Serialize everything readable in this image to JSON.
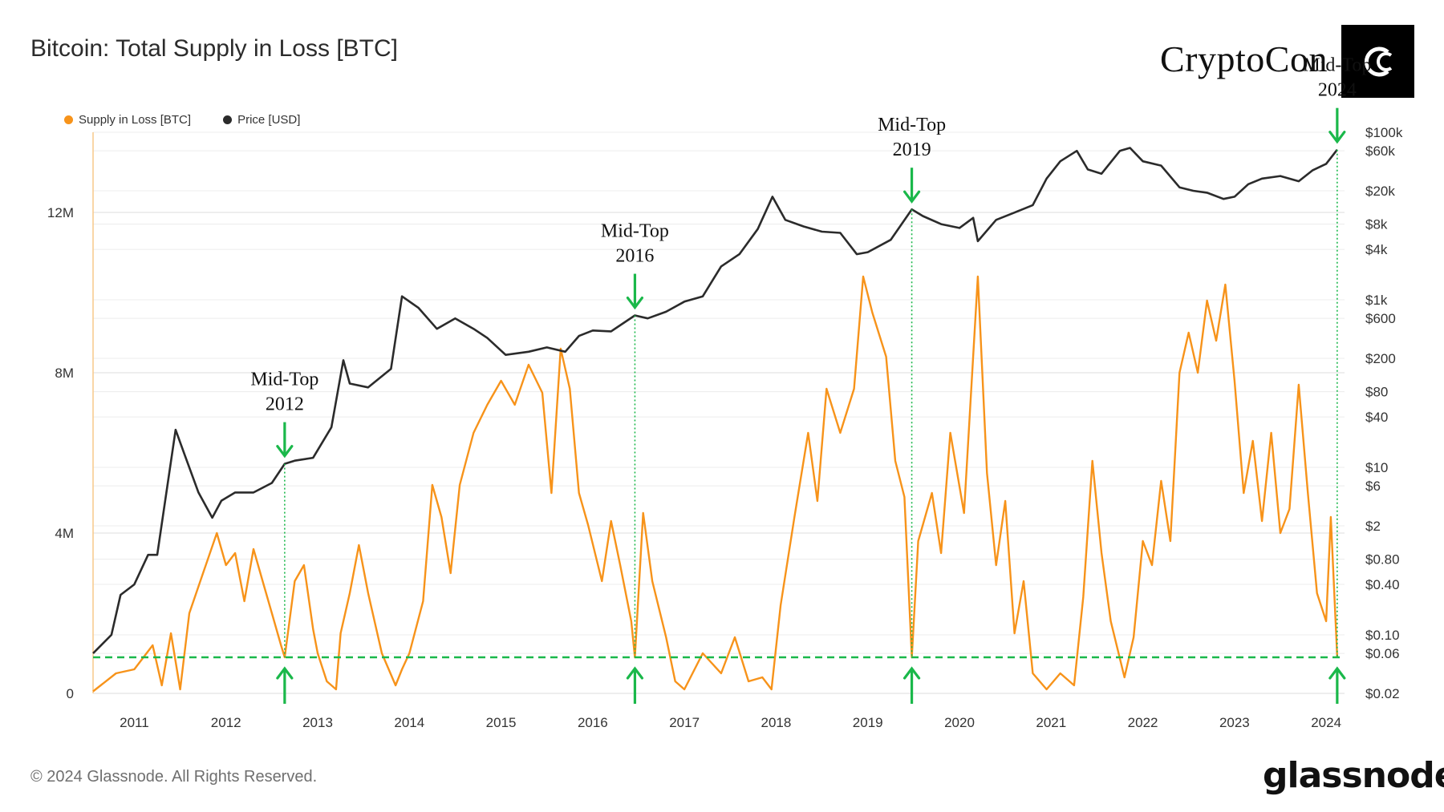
{
  "title": "Bitcoin: Total Supply in Loss [BTC]",
  "brand": {
    "name": "CryptoCon",
    "icon": "crescent-c-logo-icon"
  },
  "footer": {
    "copyright": "© 2024 Glassnode. All Rights Reserved.",
    "logo_text": "glassnode"
  },
  "chart_data": {
    "type": "line",
    "legend_position": "top-left",
    "grid": true,
    "x": {
      "label": "",
      "ticks": [
        "2011",
        "2012",
        "2013",
        "2014",
        "2015",
        "2016",
        "2017",
        "2018",
        "2019",
        "2020",
        "2021",
        "2022",
        "2023",
        "2024"
      ],
      "range": [
        2010.55,
        2024.2
      ]
    },
    "y_left": {
      "label": "",
      "ticks": [
        "0",
        "4M",
        "8M",
        "12M"
      ],
      "range_millions": [
        0,
        14
      ]
    },
    "y_right": {
      "label": "",
      "scale": "log",
      "ticks": [
        "$100k",
        "$60k",
        "$20k",
        "$8k",
        "$4k",
        "$1k",
        "$600",
        "$200",
        "$80",
        "$40",
        "$10",
        "$6",
        "$2",
        "$0.80",
        "$0.40",
        "$0.10",
        "$0.06",
        "$0.02"
      ],
      "range_usd": [
        0.02,
        100000
      ]
    },
    "series": [
      {
        "name": "Supply in Loss [BTC]",
        "color": "#f7931a",
        "unit": "millions BTC",
        "points": [
          [
            2010.55,
            0.05
          ],
          [
            2010.8,
            0.5
          ],
          [
            2011.0,
            0.6
          ],
          [
            2011.2,
            1.2
          ],
          [
            2011.3,
            0.2
          ],
          [
            2011.4,
            1.5
          ],
          [
            2011.5,
            0.1
          ],
          [
            2011.6,
            2.0
          ],
          [
            2011.75,
            3.0
          ],
          [
            2011.9,
            4.0
          ],
          [
            2012.0,
            3.2
          ],
          [
            2012.1,
            3.5
          ],
          [
            2012.2,
            2.3
          ],
          [
            2012.3,
            3.6
          ],
          [
            2012.4,
            2.8
          ],
          [
            2012.5,
            2.0
          ],
          [
            2012.6,
            1.2
          ],
          [
            2012.64,
            0.9
          ],
          [
            2012.75,
            2.8
          ],
          [
            2012.85,
            3.2
          ],
          [
            2012.95,
            1.6
          ],
          [
            2013.0,
            1.0
          ],
          [
            2013.1,
            0.3
          ],
          [
            2013.2,
            0.1
          ],
          [
            2013.25,
            1.5
          ],
          [
            2013.35,
            2.5
          ],
          [
            2013.45,
            3.7
          ],
          [
            2013.55,
            2.5
          ],
          [
            2013.7,
            1.0
          ],
          [
            2013.85,
            0.2
          ],
          [
            2013.92,
            0.6
          ],
          [
            2014.0,
            1.0
          ],
          [
            2014.15,
            2.3
          ],
          [
            2014.25,
            5.2
          ],
          [
            2014.35,
            4.4
          ],
          [
            2014.45,
            3.0
          ],
          [
            2014.55,
            5.2
          ],
          [
            2014.7,
            6.5
          ],
          [
            2014.85,
            7.2
          ],
          [
            2015.0,
            7.8
          ],
          [
            2015.15,
            7.2
          ],
          [
            2015.3,
            8.2
          ],
          [
            2015.45,
            7.5
          ],
          [
            2015.55,
            5.0
          ],
          [
            2015.65,
            8.6
          ],
          [
            2015.75,
            7.6
          ],
          [
            2015.85,
            5.0
          ],
          [
            2015.95,
            4.2
          ],
          [
            2016.1,
            2.8
          ],
          [
            2016.2,
            4.3
          ],
          [
            2016.3,
            3.2
          ],
          [
            2016.42,
            1.8
          ],
          [
            2016.46,
            0.9
          ],
          [
            2016.55,
            4.5
          ],
          [
            2016.65,
            2.8
          ],
          [
            2016.8,
            1.4
          ],
          [
            2016.9,
            0.3
          ],
          [
            2017.0,
            0.1
          ],
          [
            2017.2,
            1.0
          ],
          [
            2017.4,
            0.5
          ],
          [
            2017.55,
            1.4
          ],
          [
            2017.7,
            0.3
          ],
          [
            2017.85,
            0.4
          ],
          [
            2017.95,
            0.1
          ],
          [
            2018.05,
            2.2
          ],
          [
            2018.2,
            4.4
          ],
          [
            2018.35,
            6.5
          ],
          [
            2018.45,
            4.8
          ],
          [
            2018.55,
            7.6
          ],
          [
            2018.7,
            6.5
          ],
          [
            2018.85,
            7.6
          ],
          [
            2018.95,
            10.4
          ],
          [
            2019.05,
            9.5
          ],
          [
            2019.2,
            8.4
          ],
          [
            2019.3,
            5.8
          ],
          [
            2019.4,
            4.9
          ],
          [
            2019.48,
            0.9
          ],
          [
            2019.55,
            3.8
          ],
          [
            2019.7,
            5.0
          ],
          [
            2019.8,
            3.5
          ],
          [
            2019.9,
            6.5
          ],
          [
            2020.05,
            4.5
          ],
          [
            2020.2,
            10.4
          ],
          [
            2020.3,
            5.5
          ],
          [
            2020.4,
            3.2
          ],
          [
            2020.5,
            4.8
          ],
          [
            2020.6,
            1.5
          ],
          [
            2020.7,
            2.8
          ],
          [
            2020.8,
            0.5
          ],
          [
            2020.95,
            0.1
          ],
          [
            2021.1,
            0.5
          ],
          [
            2021.25,
            0.2
          ],
          [
            2021.35,
            2.4
          ],
          [
            2021.45,
            5.8
          ],
          [
            2021.55,
            3.5
          ],
          [
            2021.65,
            1.8
          ],
          [
            2021.8,
            0.4
          ],
          [
            2021.9,
            1.4
          ],
          [
            2022.0,
            3.8
          ],
          [
            2022.1,
            3.2
          ],
          [
            2022.2,
            5.3
          ],
          [
            2022.3,
            3.8
          ],
          [
            2022.4,
            8.0
          ],
          [
            2022.5,
            9.0
          ],
          [
            2022.6,
            8.0
          ],
          [
            2022.7,
            9.8
          ],
          [
            2022.8,
            8.8
          ],
          [
            2022.9,
            10.2
          ],
          [
            2023.0,
            7.8
          ],
          [
            2023.1,
            5.0
          ],
          [
            2023.2,
            6.3
          ],
          [
            2023.3,
            4.3
          ],
          [
            2023.4,
            6.5
          ],
          [
            2023.5,
            4.0
          ],
          [
            2023.6,
            4.6
          ],
          [
            2023.7,
            7.7
          ],
          [
            2023.8,
            5.0
          ],
          [
            2023.9,
            2.5
          ],
          [
            2024.0,
            1.8
          ],
          [
            2024.05,
            4.4
          ],
          [
            2024.12,
            0.9
          ]
        ]
      },
      {
        "name": "Price [USD]",
        "color": "#2b2b2b",
        "unit": "USD (log scale)",
        "points": [
          [
            2010.55,
            0.06
          ],
          [
            2010.75,
            0.1
          ],
          [
            2010.85,
            0.3
          ],
          [
            2011.0,
            0.4
          ],
          [
            2011.15,
            0.9
          ],
          [
            2011.25,
            0.9
          ],
          [
            2011.35,
            5
          ],
          [
            2011.45,
            28
          ],
          [
            2011.55,
            14
          ],
          [
            2011.7,
            5
          ],
          [
            2011.85,
            2.5
          ],
          [
            2011.95,
            4
          ],
          [
            2012.1,
            5
          ],
          [
            2012.3,
            5
          ],
          [
            2012.5,
            6.5
          ],
          [
            2012.64,
            11
          ],
          [
            2012.75,
            12
          ],
          [
            2012.95,
            13
          ],
          [
            2013.15,
            30
          ],
          [
            2013.28,
            190
          ],
          [
            2013.35,
            100
          ],
          [
            2013.55,
            90
          ],
          [
            2013.8,
            150
          ],
          [
            2013.92,
            1100
          ],
          [
            2014.1,
            800
          ],
          [
            2014.3,
            450
          ],
          [
            2014.5,
            600
          ],
          [
            2014.7,
            450
          ],
          [
            2014.85,
            350
          ],
          [
            2015.05,
            220
          ],
          [
            2015.3,
            240
          ],
          [
            2015.5,
            270
          ],
          [
            2015.7,
            240
          ],
          [
            2015.85,
            370
          ],
          [
            2016.0,
            430
          ],
          [
            2016.2,
            420
          ],
          [
            2016.46,
            650
          ],
          [
            2016.6,
            600
          ],
          [
            2016.8,
            720
          ],
          [
            2017.0,
            950
          ],
          [
            2017.2,
            1100
          ],
          [
            2017.4,
            2500
          ],
          [
            2017.6,
            3500
          ],
          [
            2017.8,
            7000
          ],
          [
            2017.96,
            17000
          ],
          [
            2018.1,
            9000
          ],
          [
            2018.3,
            7500
          ],
          [
            2018.5,
            6500
          ],
          [
            2018.7,
            6300
          ],
          [
            2018.88,
            3500
          ],
          [
            2019.0,
            3700
          ],
          [
            2019.25,
            5200
          ],
          [
            2019.48,
            12000
          ],
          [
            2019.6,
            10000
          ],
          [
            2019.8,
            8000
          ],
          [
            2020.0,
            7200
          ],
          [
            2020.15,
            9500
          ],
          [
            2020.2,
            5000
          ],
          [
            2020.4,
            9000
          ],
          [
            2020.6,
            11000
          ],
          [
            2020.8,
            13500
          ],
          [
            2020.95,
            28000
          ],
          [
            2021.1,
            45000
          ],
          [
            2021.28,
            60000
          ],
          [
            2021.4,
            36000
          ],
          [
            2021.55,
            32000
          ],
          [
            2021.75,
            60000
          ],
          [
            2021.86,
            65000
          ],
          [
            2022.0,
            45000
          ],
          [
            2022.2,
            40000
          ],
          [
            2022.4,
            22000
          ],
          [
            2022.55,
            20000
          ],
          [
            2022.7,
            19000
          ],
          [
            2022.88,
            16000
          ],
          [
            2023.0,
            17000
          ],
          [
            2023.15,
            24000
          ],
          [
            2023.3,
            28000
          ],
          [
            2023.5,
            30000
          ],
          [
            2023.7,
            26000
          ],
          [
            2023.85,
            35000
          ],
          [
            2024.0,
            42000
          ],
          [
            2024.12,
            62000
          ]
        ]
      }
    ],
    "threshold": {
      "label": "",
      "value_millions": 0.9,
      "color": "#1ab84a",
      "style": "dashed"
    },
    "annotations": [
      {
        "line1": "Mid-Top",
        "line2": "2012",
        "x": 2012.64
      },
      {
        "line1": "Mid-Top",
        "line2": "2016",
        "x": 2016.46
      },
      {
        "line1": "Mid-Top",
        "line2": "2019",
        "x": 2019.48
      },
      {
        "line1": "Mid-Top",
        "line2": "2024",
        "x": 2024.12
      }
    ]
  }
}
